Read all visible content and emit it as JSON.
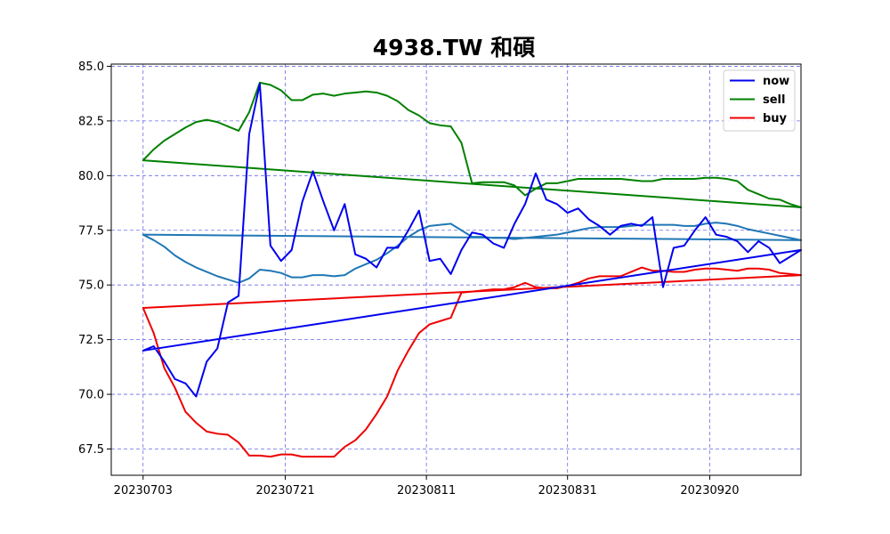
{
  "chart_data": {
    "type": "line",
    "title": "4938.TW 和碩",
    "xlabel": "",
    "ylabel": "",
    "ylim": [
      66.3,
      85.1
    ],
    "xlim": [
      -3,
      62
    ],
    "grid": true,
    "legend_position": "top-right",
    "yticks": [
      67.5,
      70.0,
      72.5,
      75.0,
      77.5,
      80.0,
      82.5,
      85.0
    ],
    "yticks_label": [
      "67.5",
      "70.0",
      "72.5",
      "75.0",
      "77.5",
      "80.0",
      "82.5",
      "85.0"
    ],
    "xticks": [
      {
        "pos": 0,
        "label": "20230703"
      },
      {
        "pos": 13.4,
        "label": "20230721"
      },
      {
        "pos": 26.7,
        "label": "20230811"
      },
      {
        "pos": 40,
        "label": "20230831"
      },
      {
        "pos": 53.4,
        "label": "20230920"
      }
    ],
    "colors": {
      "now": "#0000ee",
      "sell": "#008000",
      "buy": "#ee0000",
      "ma": "#2077b4"
    },
    "series": [
      {
        "name": "now",
        "color": "#0000ee",
        "closing_segment": true,
        "values": [
          72.0,
          72.2,
          71.5,
          70.7,
          70.5,
          69.9,
          71.5,
          72.1,
          74.2,
          74.5,
          81.9,
          84.2,
          76.8,
          76.1,
          76.6,
          78.8,
          80.2,
          78.8,
          77.5,
          78.7,
          76.4,
          76.2,
          75.8,
          76.7,
          76.7,
          77.5,
          78.4,
          76.1,
          76.2,
          75.5,
          76.6,
          77.4,
          77.3,
          76.9,
          76.7,
          77.8,
          78.7,
          80.1,
          78.9,
          78.7,
          78.3,
          78.5,
          78.0,
          77.7,
          77.3,
          77.7,
          77.8,
          77.7,
          78.1,
          74.9,
          76.7,
          76.8,
          77.5,
          78.1,
          77.3,
          77.2,
          77.0,
          76.5,
          77.0,
          76.7,
          76.0,
          76.3,
          76.6
        ]
      },
      {
        "name": "sell",
        "color": "#008000",
        "closing_segment": true,
        "values": [
          80.7,
          81.2,
          81.6,
          81.9,
          82.2,
          82.45,
          82.55,
          82.45,
          82.25,
          82.05,
          82.9,
          84.25,
          84.15,
          83.9,
          83.45,
          83.45,
          83.7,
          83.75,
          83.65,
          83.75,
          83.8,
          83.85,
          83.8,
          83.65,
          83.4,
          83.0,
          82.75,
          82.4,
          82.3,
          82.25,
          81.5,
          79.65,
          79.7,
          79.7,
          79.7,
          79.55,
          79.1,
          79.4,
          79.65,
          79.65,
          79.75,
          79.85,
          79.85,
          79.85,
          79.85,
          79.85,
          79.8,
          79.75,
          79.75,
          79.85,
          79.85,
          79.85,
          79.85,
          79.9,
          79.9,
          79.85,
          79.75,
          79.35,
          79.15,
          78.95,
          78.9,
          78.7,
          78.55
        ]
      },
      {
        "name": "buy",
        "color": "#ee0000",
        "closing_segment": true,
        "values": [
          73.95,
          72.8,
          71.2,
          70.3,
          69.2,
          68.7,
          68.3,
          68.2,
          68.15,
          67.8,
          67.2,
          67.2,
          67.15,
          67.25,
          67.25,
          67.15,
          67.15,
          67.15,
          67.15,
          67.6,
          67.9,
          68.4,
          69.1,
          69.9,
          71.1,
          72.0,
          72.8,
          73.2,
          73.35,
          73.5,
          74.65,
          74.7,
          74.75,
          74.8,
          74.8,
          74.9,
          75.1,
          74.9,
          74.85,
          74.85,
          74.95,
          75.1,
          75.3,
          75.4,
          75.4,
          75.4,
          75.6,
          75.8,
          75.65,
          75.65,
          75.6,
          75.6,
          75.7,
          75.75,
          75.75,
          75.7,
          75.65,
          75.75,
          75.75,
          75.7,
          75.55,
          75.5,
          75.45
        ]
      },
      {
        "name": "",
        "color": "#2077b4",
        "closing_segment": true,
        "values": [
          77.3,
          77.05,
          76.75,
          76.35,
          76.05,
          75.8,
          75.6,
          75.4,
          75.25,
          75.1,
          75.3,
          75.7,
          75.65,
          75.55,
          75.35,
          75.35,
          75.45,
          75.45,
          75.4,
          75.45,
          75.75,
          75.95,
          76.15,
          76.45,
          76.8,
          77.2,
          77.5,
          77.7,
          77.75,
          77.8,
          77.5,
          77.2,
          77.2,
          77.15,
          77.15,
          77.1,
          77.15,
          77.2,
          77.25,
          77.3,
          77.4,
          77.5,
          77.6,
          77.65,
          77.65,
          77.65,
          77.7,
          77.75,
          77.75,
          77.75,
          77.75,
          77.7,
          77.7,
          77.8,
          77.85,
          77.8,
          77.7,
          77.55,
          77.45,
          77.35,
          77.25,
          77.15,
          77.05
        ]
      }
    ],
    "legend": [
      {
        "label": "now",
        "color": "#0000ee"
      },
      {
        "label": "sell",
        "color": "#008000"
      },
      {
        "label": "buy",
        "color": "#ee0000"
      }
    ]
  }
}
